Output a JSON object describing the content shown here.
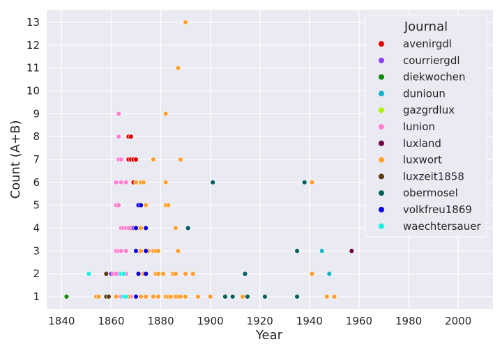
{
  "chart_data": {
    "type": "scatter",
    "xlabel": "Year",
    "ylabel": "Count (A+B)",
    "xlim": [
      1834,
      2014
    ],
    "ylim": [
      0.45,
      13.55
    ],
    "xticks": [
      1840,
      1860,
      1880,
      1900,
      1920,
      1940,
      1960,
      1980,
      2000
    ],
    "yticks": [
      1,
      2,
      3,
      4,
      5,
      6,
      7,
      8,
      9,
      10,
      11,
      12,
      13
    ],
    "grid": true,
    "legend": {
      "title": "Journal",
      "placement": "top-right"
    },
    "series": [
      {
        "name": "avenirgdl",
        "color": "#e00000",
        "points": [
          [
            1867,
            8
          ],
          [
            1868,
            8
          ],
          [
            1867,
            7
          ],
          [
            1868,
            7
          ],
          [
            1869,
            7
          ],
          [
            1870,
            7
          ],
          [
            1869,
            6
          ],
          [
            1868,
            4
          ],
          [
            1870,
            3
          ],
          [
            1871,
            2
          ],
          [
            1866,
            1
          ]
        ]
      },
      {
        "name": "courriergdl",
        "color": "#8a3ffc",
        "points": [
          [
            1866,
            4
          ],
          [
            1867,
            4
          ],
          [
            1869,
            4
          ],
          [
            1866,
            3
          ],
          [
            1860,
            2
          ],
          [
            1863,
            2
          ]
        ]
      },
      {
        "name": "diekwochen",
        "color": "#0a8a0a",
        "points": [
          [
            1842,
            1
          ]
        ]
      },
      {
        "name": "dunioun",
        "color": "#12b5c8",
        "points": [
          [
            1945,
            3
          ],
          [
            1948,
            2
          ]
        ]
      },
      {
        "name": "gazgrdlux",
        "color": "#aef20b",
        "points": [
          [
            1865,
            2
          ],
          [
            1866,
            1
          ]
        ]
      },
      {
        "name": "lunion",
        "color": "#ff7fd0",
        "points": [
          [
            1863,
            9
          ],
          [
            1863,
            8
          ],
          [
            1863,
            7
          ],
          [
            1864,
            7
          ],
          [
            1862,
            6
          ],
          [
            1864,
            6
          ],
          [
            1866,
            6
          ],
          [
            1862,
            5
          ],
          [
            1863,
            5
          ],
          [
            1864,
            4
          ],
          [
            1865,
            4
          ],
          [
            1866,
            4
          ],
          [
            1867,
            4
          ],
          [
            1862,
            3
          ],
          [
            1863,
            3
          ],
          [
            1864,
            3
          ],
          [
            1866,
            3
          ],
          [
            1861,
            2
          ],
          [
            1862,
            2
          ],
          [
            1864,
            2
          ],
          [
            1866,
            2
          ],
          [
            1862,
            1
          ],
          [
            1864,
            1
          ],
          [
            1865,
            1
          ],
          [
            1868,
            1
          ]
        ]
      },
      {
        "name": "luxland",
        "color": "#6a0045",
        "points": [
          [
            1957,
            3
          ]
        ]
      },
      {
        "name": "luxwort",
        "color": "#ff9f2e",
        "points": [
          [
            1890,
            13
          ],
          [
            1887,
            11
          ],
          [
            1882,
            9
          ],
          [
            1877,
            7
          ],
          [
            1888,
            7
          ],
          [
            1870,
            6
          ],
          [
            1872,
            6
          ],
          [
            1873,
            6
          ],
          [
            1882,
            6
          ],
          [
            1941,
            6
          ],
          [
            1882,
            5
          ],
          [
            1883,
            5
          ],
          [
            1874,
            5
          ],
          [
            1871,
            4
          ],
          [
            1872,
            4
          ],
          [
            1886,
            4
          ],
          [
            1871,
            3
          ],
          [
            1872,
            3
          ],
          [
            1875,
            3
          ],
          [
            1877,
            3
          ],
          [
            1878,
            3
          ],
          [
            1879,
            3
          ],
          [
            1887,
            3
          ],
          [
            1873,
            2
          ],
          [
            1878,
            2
          ],
          [
            1879,
            2
          ],
          [
            1881,
            2
          ],
          [
            1885,
            2
          ],
          [
            1886,
            2
          ],
          [
            1890,
            2
          ],
          [
            1893,
            2
          ],
          [
            1941,
            2
          ],
          [
            1854,
            1
          ],
          [
            1855,
            1
          ],
          [
            1862,
            1
          ],
          [
            1867,
            1
          ],
          [
            1870,
            1
          ],
          [
            1872,
            1
          ],
          [
            1874,
            1
          ],
          [
            1877,
            1
          ],
          [
            1879,
            1
          ],
          [
            1882,
            1
          ],
          [
            1883,
            1
          ],
          [
            1884,
            1
          ],
          [
            1886,
            1
          ],
          [
            1887,
            1
          ],
          [
            1888,
            1
          ],
          [
            1890,
            1
          ],
          [
            1895,
            1
          ],
          [
            1900,
            1
          ],
          [
            1913,
            1
          ],
          [
            1947,
            1
          ],
          [
            1950,
            1
          ]
        ]
      },
      {
        "name": "luxzeit1858",
        "color": "#5c3a12",
        "points": [
          [
            1858,
            2
          ],
          [
            1858,
            1
          ],
          [
            1859,
            1
          ]
        ]
      },
      {
        "name": "obermosel",
        "color": "#005f5f",
        "points": [
          [
            1901,
            6
          ],
          [
            1938,
            6
          ],
          [
            1891,
            4
          ],
          [
            1935,
            3
          ],
          [
            1914,
            2
          ],
          [
            1906,
            1
          ],
          [
            1909,
            1
          ],
          [
            1915,
            1
          ],
          [
            1922,
            1
          ],
          [
            1935,
            1
          ]
        ]
      },
      {
        "name": "volkfreu1869",
        "color": "#0a00e0",
        "points": [
          [
            1871,
            5
          ],
          [
            1872,
            5
          ],
          [
            1870,
            4
          ],
          [
            1874,
            4
          ],
          [
            1870,
            3
          ],
          [
            1874,
            3
          ],
          [
            1871,
            2
          ],
          [
            1874,
            2
          ],
          [
            1870,
            1
          ]
        ]
      },
      {
        "name": "waechtersauer",
        "color": "#19f0e0",
        "points": [
          [
            1851,
            2
          ],
          [
            1864,
            2
          ],
          [
            1865,
            2
          ],
          [
            1865,
            1
          ],
          [
            1866,
            1
          ]
        ]
      }
    ]
  }
}
